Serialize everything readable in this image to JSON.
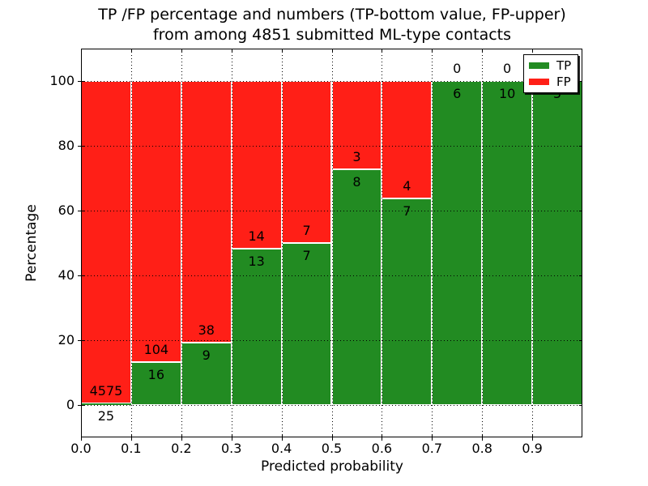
{
  "chart_data": {
    "type": "bar",
    "stacked": true,
    "normalized": "each bin scaled to 100%",
    "title_lines": [
      "TP /FP percentage and numbers (TP-bottom value, FP-upper)",
      "from among 4851 submitted ML-type contacts"
    ],
    "xlabel": "Predicted probability",
    "ylabel": "Percentage",
    "total_contacts": 4851,
    "categories": [
      "0.0-0.1",
      "0.1-0.2",
      "0.2-0.3",
      "0.3-0.4",
      "0.4-0.5",
      "0.5-0.6",
      "0.6-0.7",
      "0.7-0.8",
      "0.8-0.9",
      "0.9-1.0"
    ],
    "bin_width": 0.1,
    "series": [
      {
        "name": "TP",
        "color": "#228B22",
        "values": [
          25,
          16,
          9,
          13,
          7,
          8,
          7,
          6,
          10,
          5
        ]
      },
      {
        "name": "FP",
        "color": "#FF1F17",
        "values": [
          4575,
          104,
          38,
          14,
          7,
          3,
          4,
          0,
          0,
          0
        ]
      }
    ],
    "x_ticks": [
      0.0,
      0.1,
      0.2,
      0.3,
      0.4,
      0.5,
      0.6,
      0.7,
      0.8,
      0.9
    ],
    "x_tick_labels": [
      "0.0",
      "0.1",
      "0.2",
      "0.3",
      "0.4",
      "0.5",
      "0.6",
      "0.7",
      "0.8",
      "0.9"
    ],
    "y_ticks": [
      0,
      20,
      40,
      60,
      80,
      100
    ],
    "y_tick_labels": [
      "0",
      "20",
      "40",
      "60",
      "80",
      "100"
    ],
    "xlim": [
      0.0,
      1.0
    ],
    "ylim": [
      -10,
      110
    ],
    "grid": {
      "visible": true,
      "style": "dotted",
      "color": "#000000",
      "drawn_above_bars": true
    },
    "legend": {
      "position": "upper right",
      "entries": [
        {
          "label": "TP",
          "color": "#228B22"
        },
        {
          "label": "FP",
          "color": "#FF1F17"
        }
      ]
    }
  },
  "colors": {
    "tp": "#228B22",
    "fp": "#FF1F17",
    "background": "#FFFFFF",
    "axis": "#000000",
    "bar_edge": "#FFFFFF"
  }
}
